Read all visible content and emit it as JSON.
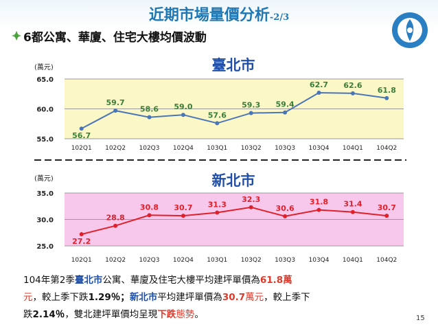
{
  "slide": {
    "title": "近期市場量價分析",
    "title_suffix": "-2/3",
    "subtitle": "6都公寓、華廈、住宅大樓均價波動",
    "page_number": "15"
  },
  "colors": {
    "taipei_line": "#4a76b8",
    "taipei_bg": "#fbf7c6",
    "newtaipei_line": "#e0202a",
    "newtaipei_bg": "#f7c8ec",
    "city_title": "#1f4fa8",
    "label_green": "#3b7d3b",
    "label_red": "#e0202a"
  },
  "chart_data": [
    {
      "type": "line",
      "title": "臺北市",
      "ylabel": "(萬元)",
      "categories": [
        "102Q1",
        "102Q2",
        "102Q3",
        "102Q4",
        "103Q1",
        "103Q2",
        "103Q3",
        "103Q4",
        "104Q1",
        "104Q2"
      ],
      "values": [
        56.7,
        59.7,
        58.6,
        59.0,
        57.6,
        59.3,
        59.4,
        62.7,
        62.6,
        61.8
      ],
      "value_labels": [
        "56.7",
        "59.7",
        "58.6",
        "59.0",
        "57.6",
        "59.3",
        "59.4",
        "62.7",
        "62.6",
        "61.8"
      ],
      "ylim": [
        55,
        65
      ],
      "yticks": [
        "55.0",
        "60.0",
        "65.0"
      ],
      "grid": true
    },
    {
      "type": "line",
      "title": "新北市",
      "ylabel": "(萬元)",
      "categories": [
        "102Q1",
        "102Q2",
        "102Q3",
        "102Q4",
        "103Q1",
        "103Q2",
        "103Q3",
        "103Q4",
        "104Q1",
        "104Q2"
      ],
      "values": [
        27.2,
        28.8,
        30.8,
        30.7,
        31.3,
        32.3,
        30.6,
        31.8,
        31.4,
        30.7
      ],
      "value_labels": [
        "27.2",
        "28.8",
        "30.8",
        "30.7",
        "31.3",
        "32.3",
        "30.6",
        "31.8",
        "31.4",
        "30.7"
      ],
      "ylim": [
        25,
        35
      ],
      "yticks": [
        "25.0",
        "30.0",
        "35.0"
      ],
      "grid": true
    }
  ],
  "footer": {
    "t1": "104年第2季",
    "t2": "臺北市",
    "t3": "公寓、華廈及住宅大樓平均建坪單價為",
    "t4": "61.8萬",
    "t5": "元",
    "t6": "，較上季下跌",
    "t7": "1.29％；",
    "t8": "新北市",
    "t9": "平均建坪單價為",
    "t10": "30.7",
    "t11": "萬元",
    "t12": "，較上季下",
    "t13": "跌",
    "t14": "2.14％",
    "t15": "，雙北建坪單價均呈現",
    "t16": "下跌",
    "t17": "態勢",
    "t18": "。"
  }
}
